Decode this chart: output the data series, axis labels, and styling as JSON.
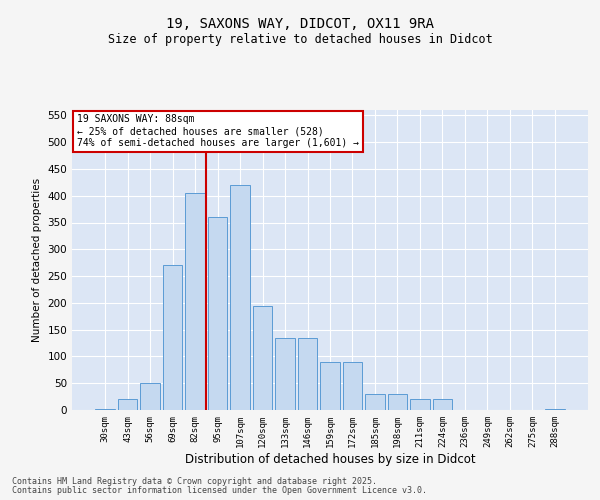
{
  "title_line1": "19, SAXONS WAY, DIDCOT, OX11 9RA",
  "title_line2": "Size of property relative to detached houses in Didcot",
  "xlabel": "Distribution of detached houses by size in Didcot",
  "ylabel": "Number of detached properties",
  "categories": [
    "30sqm",
    "43sqm",
    "56sqm",
    "69sqm",
    "82sqm",
    "95sqm",
    "107sqm",
    "120sqm",
    "133sqm",
    "146sqm",
    "159sqm",
    "172sqm",
    "185sqm",
    "198sqm",
    "211sqm",
    "224sqm",
    "236sqm",
    "249sqm",
    "262sqm",
    "275sqm",
    "288sqm"
  ],
  "values": [
    2,
    20,
    50,
    270,
    405,
    360,
    420,
    195,
    135,
    135,
    90,
    90,
    30,
    30,
    20,
    20,
    0,
    0,
    0,
    0,
    2
  ],
  "bar_color": "#c5d9f0",
  "bar_edge_color": "#5b9bd5",
  "vline_x_index": 4,
  "vline_color": "#cc0000",
  "annotation_box_text": "19 SAXONS WAY: 88sqm\n← 25% of detached houses are smaller (528)\n74% of semi-detached houses are larger (1,601) →",
  "annotation_box_color": "#cc0000",
  "ylim": [
    0,
    560
  ],
  "yticks": [
    0,
    50,
    100,
    150,
    200,
    250,
    300,
    350,
    400,
    450,
    500,
    550
  ],
  "fig_background_color": "#f5f5f5",
  "axes_background_color": "#dce6f5",
  "grid_color": "#ffffff",
  "footer_line1": "Contains HM Land Registry data © Crown copyright and database right 2025.",
  "footer_line2": "Contains public sector information licensed under the Open Government Licence v3.0."
}
